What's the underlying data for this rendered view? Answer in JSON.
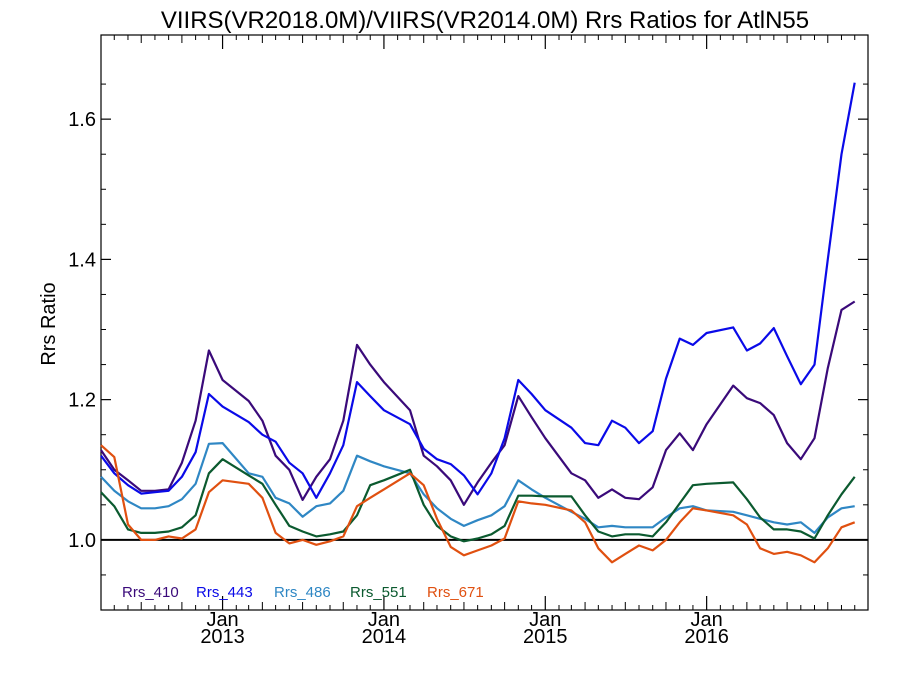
{
  "chart_data": {
    "type": "line",
    "title": "VIIRS(VR2018.0M)/VIIRS(VR2014.0M)  Rrs Ratios for AtlN55",
    "ylabel": "Rrs Ratio",
    "xlabel": "",
    "ylim": [
      0.9,
      1.72
    ],
    "xlim": [
      "2012-04-01",
      "2016-12-31"
    ],
    "grid": false,
    "legend_position": "bottom-left",
    "yticks": [
      {
        "value": 1.0,
        "label": "1.0"
      },
      {
        "value": 1.2,
        "label": "1.2"
      },
      {
        "value": 1.4,
        "label": "1.4"
      },
      {
        "value": 1.6,
        "label": "1.6"
      }
    ],
    "xticks": [
      {
        "date": "2013-01-01",
        "label_month": "Jan",
        "label_year": "2013"
      },
      {
        "date": "2014-01-01",
        "label_month": "Jan",
        "label_year": "2014"
      },
      {
        "date": "2015-01-01",
        "label_month": "Jan",
        "label_year": "2015"
      },
      {
        "date": "2016-01-01",
        "label_month": "Jan",
        "label_year": "2016"
      }
    ],
    "reference_line": 1.0,
    "dates": [
      "2012-04-01",
      "2012-05-01",
      "2012-06-01",
      "2012-07-01",
      "2012-08-01",
      "2012-09-01",
      "2012-10-01",
      "2012-11-01",
      "2012-12-01",
      "2013-01-01",
      "2013-03-01",
      "2013-04-01",
      "2013-05-01",
      "2013-06-01",
      "2013-07-01",
      "2013-08-01",
      "2013-09-01",
      "2013-10-01",
      "2013-11-01",
      "2013-12-01",
      "2014-01-01",
      "2014-03-01",
      "2014-04-01",
      "2014-05-01",
      "2014-06-01",
      "2014-07-01",
      "2014-08-01",
      "2014-09-01",
      "2014-10-01",
      "2014-11-01",
      "2014-12-01",
      "2015-01-01",
      "2015-03-01",
      "2015-04-01",
      "2015-05-01",
      "2015-06-01",
      "2015-07-01",
      "2015-08-01",
      "2015-09-01",
      "2015-10-01",
      "2015-11-01",
      "2015-12-01",
      "2016-01-01",
      "2016-03-01",
      "2016-04-01",
      "2016-05-01",
      "2016-06-01",
      "2016-07-01",
      "2016-08-01",
      "2016-09-01",
      "2016-10-01",
      "2016-11-01",
      "2016-12-01"
    ],
    "series": [
      {
        "name": "Rrs_410",
        "color": "#3a0a7a",
        "values": [
          1.128,
          1.1,
          1.085,
          1.07,
          1.07,
          1.072,
          1.11,
          1.17,
          1.27,
          1.228,
          1.198,
          1.17,
          1.12,
          1.1,
          1.057,
          1.09,
          1.115,
          1.17,
          1.278,
          1.25,
          1.225,
          1.185,
          1.12,
          1.105,
          1.085,
          1.05,
          1.082,
          1.11,
          1.135,
          1.205,
          1.175,
          1.145,
          1.095,
          1.085,
          1.06,
          1.072,
          1.06,
          1.058,
          1.075,
          1.128,
          1.152,
          1.128,
          1.165,
          1.22,
          1.202,
          1.195,
          1.178,
          1.138,
          1.115,
          1.145,
          1.245,
          1.328,
          1.34
        ]
      },
      {
        "name": "Rrs_443",
        "color": "#0a0ae8",
        "values": [
          1.12,
          1.095,
          1.078,
          1.066,
          1.068,
          1.07,
          1.09,
          1.125,
          1.208,
          1.19,
          1.168,
          1.15,
          1.14,
          1.11,
          1.095,
          1.06,
          1.095,
          1.135,
          1.225,
          1.205,
          1.185,
          1.165,
          1.13,
          1.115,
          1.108,
          1.092,
          1.065,
          1.095,
          1.145,
          1.228,
          1.208,
          1.185,
          1.16,
          1.138,
          1.135,
          1.17,
          1.16,
          1.138,
          1.155,
          1.23,
          1.287,
          1.278,
          1.295,
          1.303,
          1.27,
          1.28,
          1.302,
          1.262,
          1.222,
          1.25,
          1.4,
          1.55,
          1.652
        ]
      },
      {
        "name": "Rrs_486",
        "color": "#2f87c4",
        "values": [
          1.09,
          1.07,
          1.055,
          1.045,
          1.045,
          1.048,
          1.058,
          1.08,
          1.137,
          1.138,
          1.095,
          1.09,
          1.06,
          1.052,
          1.033,
          1.048,
          1.052,
          1.07,
          1.12,
          1.112,
          1.105,
          1.095,
          1.065,
          1.045,
          1.03,
          1.02,
          1.028,
          1.035,
          1.048,
          1.085,
          1.072,
          1.06,
          1.04,
          1.03,
          1.018,
          1.02,
          1.018,
          1.018,
          1.018,
          1.032,
          1.045,
          1.048,
          1.042,
          1.04,
          1.035,
          1.03,
          1.025,
          1.022,
          1.025,
          1.01,
          1.032,
          1.045,
          1.048
        ]
      },
      {
        "name": "Rrs_551",
        "color": "#0b5a2f",
        "values": [
          1.068,
          1.048,
          1.015,
          1.01,
          1.01,
          1.012,
          1.018,
          1.035,
          1.095,
          1.115,
          1.092,
          1.08,
          1.05,
          1.02,
          1.012,
          1.005,
          1.008,
          1.012,
          1.035,
          1.078,
          1.085,
          1.1,
          1.05,
          1.02,
          1.005,
          0.998,
          1.002,
          1.008,
          1.02,
          1.063,
          1.063,
          1.062,
          1.062,
          1.035,
          1.012,
          1.005,
          1.008,
          1.008,
          1.005,
          1.025,
          1.052,
          1.078,
          1.08,
          1.082,
          1.058,
          1.032,
          1.015,
          1.015,
          1.012,
          1.002,
          1.035,
          1.065,
          1.09
        ]
      },
      {
        "name": "Rrs_671",
        "color": "#e05010",
        "values": [
          1.135,
          1.118,
          1.022,
          1.0,
          1.0,
          1.005,
          1.002,
          1.015,
          1.068,
          1.085,
          1.08,
          1.06,
          1.01,
          0.995,
          1.0,
          0.993,
          0.998,
          1.005,
          1.048,
          1.06,
          1.072,
          1.095,
          1.078,
          1.03,
          0.99,
          0.978,
          0.985,
          0.992,
          1.002,
          1.055,
          1.052,
          1.05,
          1.042,
          1.025,
          0.988,
          0.968,
          0.98,
          0.992,
          0.985,
          1.0,
          1.025,
          1.045,
          1.042,
          1.035,
          1.022,
          0.988,
          0.98,
          0.983,
          0.978,
          0.968,
          0.988,
          1.018,
          1.025
        ]
      }
    ]
  }
}
